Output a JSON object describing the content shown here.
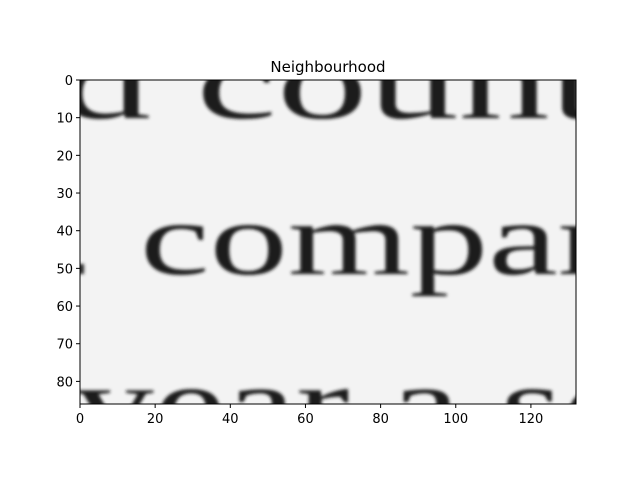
{
  "figure": {
    "title": "Neighbourhood",
    "image_text": [
      "d count",
      "compar",
      "year a se"
    ]
  },
  "x_axis": {
    "ticks": [
      0,
      20,
      40,
      60,
      80,
      100,
      120
    ],
    "range": [
      0,
      132
    ]
  },
  "y_axis": {
    "ticks": [
      0,
      10,
      20,
      30,
      40,
      50,
      60,
      70,
      80
    ],
    "range": [
      0,
      86
    ]
  },
  "colors": {
    "paper": "#f3f3f3",
    "ink": "#1d1d1d",
    "axes": "#000000"
  }
}
